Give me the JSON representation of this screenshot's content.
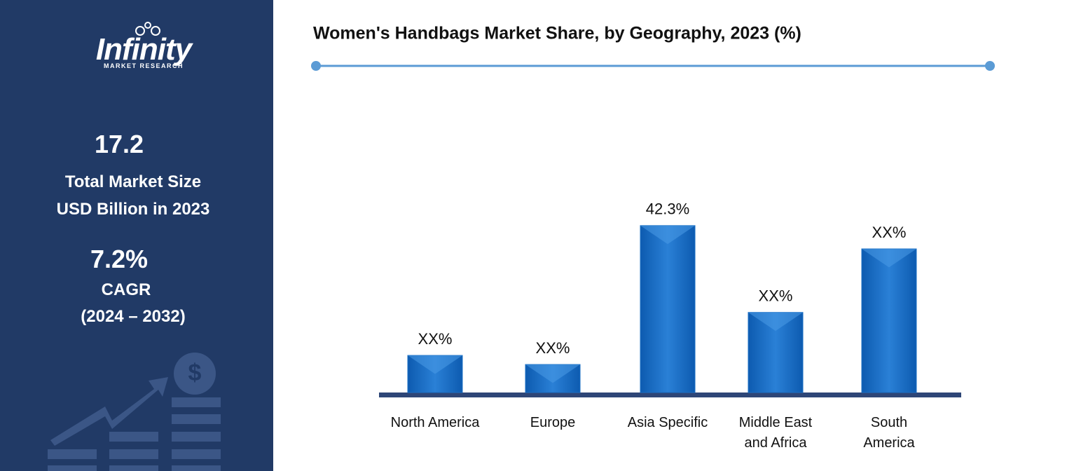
{
  "sidebar": {
    "logo": {
      "name": "Infinity",
      "tagline": "MARKET RESEARCH"
    },
    "market_size": {
      "value": "17.2",
      "label_lines": [
        "Total Market Size",
        "USD Billion in 2023"
      ]
    },
    "cagr": {
      "value": "7.2%",
      "label": "CAGR",
      "period": "(2024 – 2032)"
    }
  },
  "chart_data": {
    "type": "bar",
    "title": "Women's Handbags Market Share, by Geography, 2023 (%)",
    "categories": [
      "North America",
      "Europe",
      "Asia Specific",
      "Middle East and Africa",
      "South America"
    ],
    "values": [
      9.4,
      7.1,
      42.3,
      20.3,
      36.4
    ],
    "value_labels": [
      "XX%",
      "XX%",
      "42.3%",
      "XX%",
      "XX%"
    ],
    "color": "#1a6fc4"
  }
}
